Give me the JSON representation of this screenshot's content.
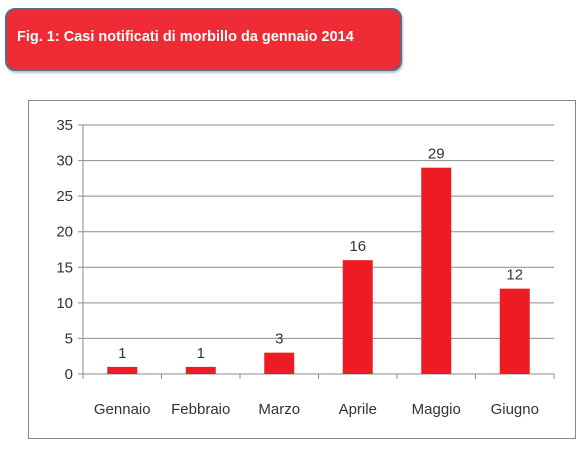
{
  "header": {
    "title": "Fig. 1: Casi notificati di morbillo da gennaio 2014"
  },
  "colors": {
    "banner_bg": "#ef2b35",
    "banner_border": "#5b6a86",
    "bar_fill": "#ed1c24",
    "grid": "#8c8c8c",
    "text": "#333333"
  },
  "chart_data": {
    "type": "bar",
    "title": "",
    "xlabel": "",
    "ylabel": "",
    "categories": [
      "Gennaio",
      "Febbraio",
      "Marzo",
      "Aprile",
      "Maggio",
      "Giugno"
    ],
    "values": [
      1,
      1,
      3,
      16,
      29,
      12
    ],
    "data_labels": [
      "1",
      "1",
      "3",
      "16",
      "29",
      "12"
    ],
    "ylim": [
      0,
      35
    ],
    "yticks": [
      0,
      5,
      10,
      15,
      20,
      25,
      30,
      35
    ],
    "grid": true,
    "legend": "none"
  }
}
